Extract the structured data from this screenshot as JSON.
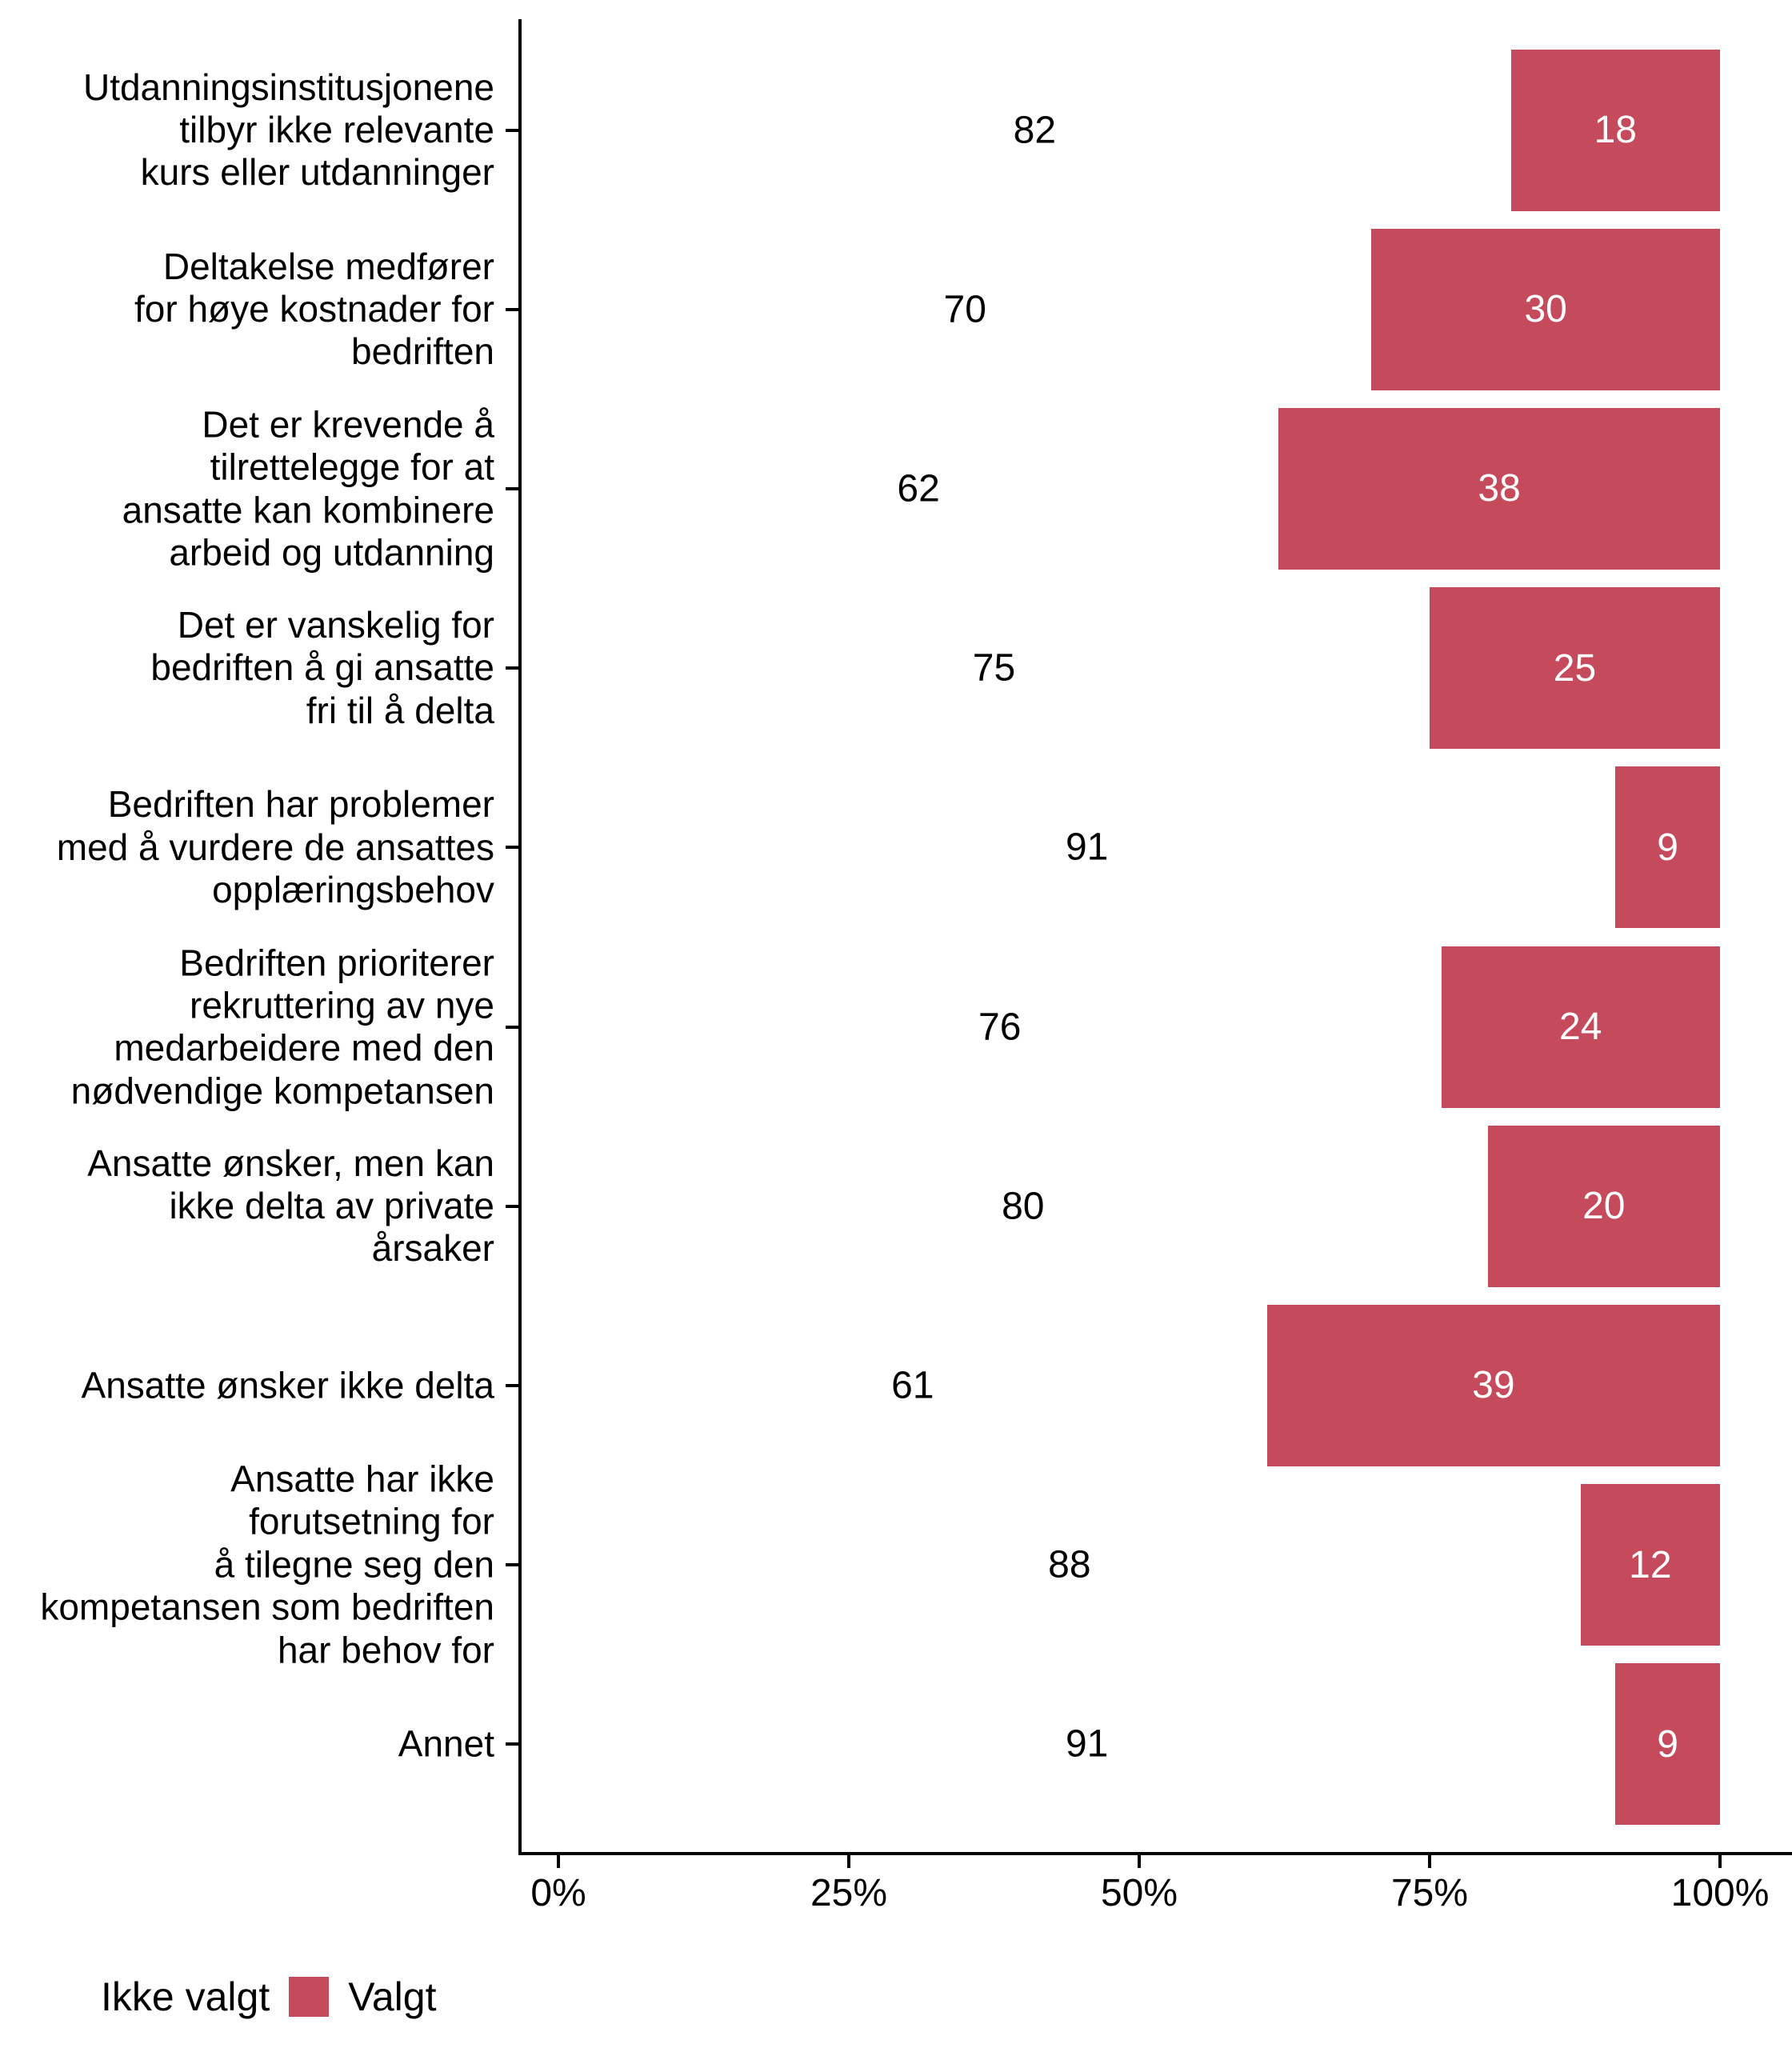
{
  "chart_data": {
    "type": "bar",
    "orientation": "horizontal",
    "stacked": true,
    "unit": "percent",
    "title": "",
    "categories": [
      "Utdanningsinstitusjonene\ntilbyr ikke relevante\nkurs eller utdanninger",
      "Deltakelse medfører\nfor høye kostnader for\nbedriften",
      "Det er krevende å\ntilrettelegge for at\nansatte kan kombinere\narbeid og utdanning",
      "Det er vanskelig for\nbedriften å gi ansatte\nfri til å delta",
      "Bedriften har problemer\nmed å vurdere de ansattes\nopplæringsbehov",
      "Bedriften prioriterer\nrekruttering av nye\nmedarbeidere med den\nnødvendige kompetansen",
      "Ansatte ønsker, men kan\nikke delta av private\nårsaker",
      "Ansatte ønsker ikke delta",
      "Ansatte har ikke\nforutsetning for\nå tilegne seg den\nkompetansen som bedriften\nhar behov for",
      "Annet"
    ],
    "series": [
      {
        "name": "Ikke valgt",
        "color": "#ffffff",
        "label_color": "#000000",
        "values": [
          82,
          70,
          62,
          75,
          91,
          76,
          80,
          61,
          88,
          91
        ]
      },
      {
        "name": "Valgt",
        "color": "#C54B5C",
        "label_color": "#ffffff",
        "values": [
          18,
          30,
          38,
          25,
          9,
          24,
          20,
          39,
          12,
          9
        ]
      }
    ],
    "x_axis": {
      "range": [
        0,
        100
      ],
      "tick_values": [
        0,
        25,
        50,
        75,
        100
      ],
      "tick_labels": [
        "0%",
        "25%",
        "50%",
        "75%",
        "100%"
      ]
    },
    "y_axis": {
      "label": ""
    },
    "grid": "off",
    "legend": {
      "position": "bottom-left",
      "items": [
        {
          "label": "Ikke valgt",
          "color": "#ffffff"
        },
        {
          "label": "Valgt",
          "color": "#C54B5C"
        }
      ]
    }
  },
  "colors": {
    "accent_red": "#C54B5C",
    "axis": "#000000",
    "background": "#ffffff"
  }
}
